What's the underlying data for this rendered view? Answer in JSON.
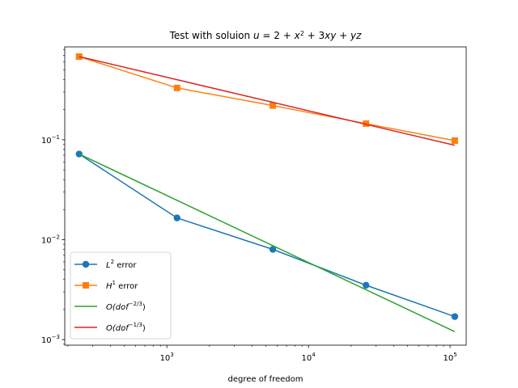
{
  "chart_data": {
    "type": "line",
    "title": "Test with soluion u = 2 + x² + 3xy + yz",
    "xlabel": "degree of freedom",
    "ylabel": "",
    "xscale": "log",
    "yscale": "log",
    "xlim": [
      190,
      130000
    ],
    "ylim": [
      0.00088,
      0.85
    ],
    "grid": false,
    "legend_position": "lower-left",
    "x_ticks": [
      {
        "value": 1000,
        "base": "10",
        "exp": "3"
      },
      {
        "value": 10000,
        "base": "10",
        "exp": "4"
      },
      {
        "value": 100000,
        "base": "10",
        "exp": "5"
      }
    ],
    "y_ticks": [
      {
        "value": 0.001,
        "base": "10",
        "exp": "−3"
      },
      {
        "value": 0.01,
        "base": "10",
        "exp": "−2"
      },
      {
        "value": 0.1,
        "base": "10",
        "exp": "−1"
      }
    ],
    "series": [
      {
        "name": "L² error",
        "label_base": "L",
        "label_sup": "2",
        "label_rest": " error",
        "color": "#1f77b4",
        "marker": "circle",
        "x": [
          240,
          1180,
          5600,
          25500,
          108000
        ],
        "y": [
          0.072,
          0.0165,
          0.008,
          0.0035,
          0.0017
        ]
      },
      {
        "name": "H¹ error",
        "label_base": "H",
        "label_sup": "1",
        "label_rest": " error",
        "color": "#ff7f0e",
        "marker": "square",
        "x": [
          240,
          1180,
          5600,
          25500,
          108000
        ],
        "y": [
          0.68,
          0.33,
          0.22,
          0.145,
          0.098
        ]
      },
      {
        "name": "O(dof⁻²ᐟ³)",
        "label_base": "O(dof",
        "label_sup": "−2/3",
        "label_rest": ")",
        "color": "#2ca02c",
        "marker": "none",
        "x": [
          240,
          108000
        ],
        "y": [
          0.072,
          0.0012
        ]
      },
      {
        "name": "O(dof⁻¹ᐟ³)",
        "label_base": "O(dof",
        "label_sup": "−1/3",
        "label_rest": ")",
        "color": "#d62728",
        "marker": "none",
        "x": [
          240,
          108000
        ],
        "y": [
          0.68,
          0.088
        ]
      }
    ]
  }
}
